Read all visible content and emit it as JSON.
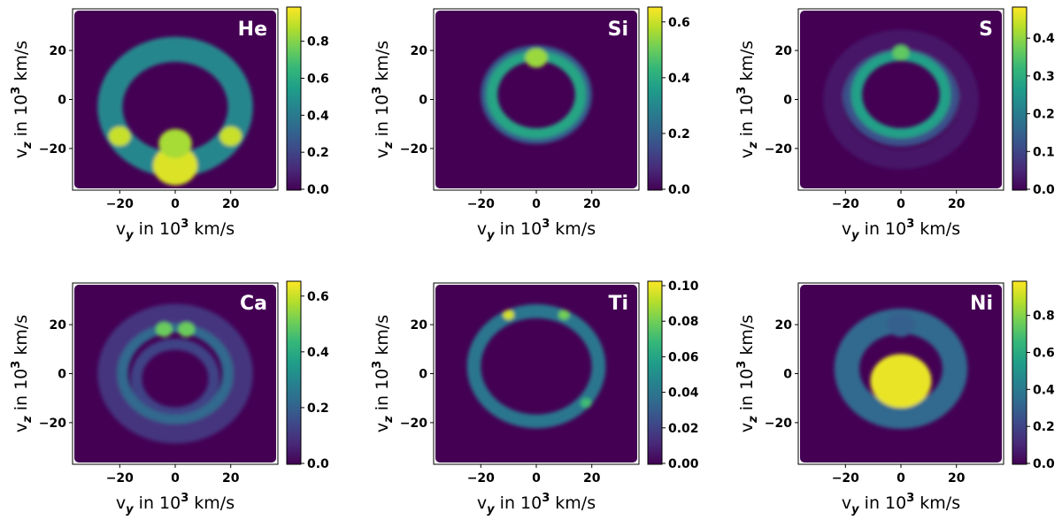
{
  "figure": {
    "description_text": ""
  },
  "colormap": {
    "name": "viridis",
    "stops": [
      "#440154",
      "#482878",
      "#3e4989",
      "#31688e",
      "#26828e",
      "#1f9e89",
      "#35b779",
      "#6ece58",
      "#b5de2b",
      "#fde725"
    ]
  },
  "common": {
    "xlabel": {
      "main": "v",
      "sub": "y",
      "mid": " in 10",
      "sup": "3",
      "unit": " km/s"
    },
    "ylabel": {
      "main": "v",
      "sub": "z",
      "mid": " in 10",
      "sup": "3",
      "unit": " km/s"
    },
    "xticks": [
      -20,
      0,
      20
    ],
    "yticks": [
      -20,
      0,
      20
    ],
    "xlim": [
      -37,
      37
    ],
    "ylim": [
      -37,
      37
    ]
  },
  "chart_data": [
    {
      "type": "heatmap",
      "title": "He",
      "cbar_ticks": [
        0.0,
        0.2,
        0.4,
        0.6,
        0.8
      ],
      "cbar_tick_labels": [
        "0.0",
        "0.2",
        "0.4",
        "0.6",
        "0.8"
      ],
      "vmax": 0.98,
      "features": [
        {
          "shape": "shell",
          "cx": 0,
          "cy": -3,
          "r_inner": 19,
          "r_outer": 28,
          "value": 0.45
        },
        {
          "shape": "blob",
          "cx": 0,
          "cy": -27,
          "r": 8,
          "value": 0.93
        },
        {
          "shape": "blob",
          "cx": 0,
          "cy": -18,
          "r": 6,
          "value": 0.85
        },
        {
          "shape": "blob",
          "cx": -20,
          "cy": -15,
          "r": 4,
          "value": 0.9
        },
        {
          "shape": "blob",
          "cx": 20,
          "cy": -15,
          "r": 4,
          "value": 0.9
        }
      ]
    },
    {
      "type": "heatmap",
      "title": "Si",
      "cbar_ticks": [
        0.0,
        0.2,
        0.4,
        0.6
      ],
      "cbar_tick_labels": [
        "0.0",
        "0.2",
        "0.4",
        "0.6"
      ],
      "vmax": 0.65,
      "features": [
        {
          "shape": "shell",
          "cx": 0,
          "cy": 2,
          "r_inner": 14,
          "r_outer": 18,
          "value": 0.38
        },
        {
          "shape": "shell",
          "cx": 0,
          "cy": 2,
          "r_inner": 18,
          "r_outer": 20,
          "value": 0.2
        },
        {
          "shape": "blob",
          "cx": 0,
          "cy": 17,
          "r": 4,
          "value": 0.55
        }
      ]
    },
    {
      "type": "heatmap",
      "title": "S",
      "cbar_ticks": [
        0.0,
        0.1,
        0.2,
        0.3,
        0.4
      ],
      "cbar_tick_labels": [
        "0.0",
        "0.1",
        "0.2",
        "0.3",
        "0.4"
      ],
      "vmax": 0.48,
      "features": [
        {
          "shape": "shell",
          "cx": 0,
          "cy": 2,
          "r_inner": 14,
          "r_outer": 18,
          "value": 0.27
        },
        {
          "shape": "shell",
          "cx": 0,
          "cy": 2,
          "r_inner": 18,
          "r_outer": 21,
          "value": 0.12
        },
        {
          "shape": "shell",
          "cx": 0,
          "cy": 0,
          "r_inner": 21,
          "r_outer": 28,
          "value": 0.03
        },
        {
          "shape": "blob",
          "cx": 0,
          "cy": 19,
          "r": 3,
          "value": 0.36
        }
      ]
    },
    {
      "type": "heatmap",
      "title": "Ca",
      "cbar_ticks": [
        0.0,
        0.2,
        0.4,
        0.6
      ],
      "cbar_tick_labels": [
        "0.0",
        "0.2",
        "0.4",
        "0.6"
      ],
      "vmax": 0.65,
      "features": [
        {
          "shape": "shell",
          "cx": 0,
          "cy": -2,
          "r_inner": 12,
          "r_outer": 16,
          "value": 0.13
        },
        {
          "shape": "shell",
          "cx": 0,
          "cy": 0,
          "r_inner": 17,
          "r_outer": 21,
          "value": 0.22
        },
        {
          "shape": "shell",
          "cx": 0,
          "cy": 0,
          "r_inner": 21,
          "r_outer": 28,
          "value": 0.1
        },
        {
          "shape": "blob",
          "cx": -4,
          "cy": 18,
          "r": 3,
          "value": 0.5
        },
        {
          "shape": "blob",
          "cx": 4,
          "cy": 18,
          "r": 3,
          "value": 0.5
        }
      ]
    },
    {
      "type": "heatmap",
      "title": "Ti",
      "cbar_ticks": [
        0.0,
        0.02,
        0.04,
        0.06,
        0.08,
        0.1
      ],
      "cbar_tick_labels": [
        "0.00",
        "0.02",
        "0.04",
        "0.06",
        "0.08",
        "0.10"
      ],
      "vmax": 0.102,
      "features": [
        {
          "shape": "shell",
          "cx": 0,
          "cy": 3,
          "r_inner": 20,
          "r_outer": 25,
          "value": 0.04
        },
        {
          "shape": "blob",
          "cx": -10,
          "cy": 24,
          "r": 2,
          "value": 0.095
        },
        {
          "shape": "blob",
          "cx": 10,
          "cy": 24,
          "r": 2,
          "value": 0.08
        },
        {
          "shape": "blob",
          "cx": 18,
          "cy": -12,
          "r": 2,
          "value": 0.07
        }
      ]
    },
    {
      "type": "heatmap",
      "title": "Ni",
      "cbar_ticks": [
        0.0,
        0.2,
        0.4,
        0.6,
        0.8
      ],
      "cbar_tick_labels": [
        "0.0",
        "0.2",
        "0.4",
        "0.6",
        "0.8"
      ],
      "vmax": 0.98,
      "features": [
        {
          "shape": "shell",
          "cx": 0,
          "cy": 2,
          "r_inner": 15,
          "r_outer": 24,
          "value": 0.33
        },
        {
          "shape": "blob",
          "cx": 0,
          "cy": 20,
          "r": 5,
          "value": 0.3
        },
        {
          "shape": "blob",
          "cx": 0,
          "cy": -3,
          "r": 11,
          "value": 0.95
        }
      ]
    }
  ]
}
